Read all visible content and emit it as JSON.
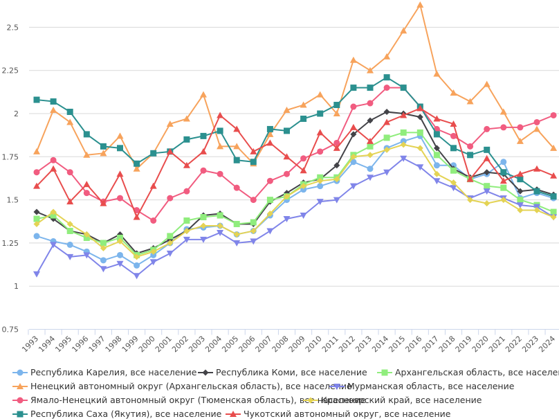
{
  "chart_data": {
    "type": "line",
    "title": "",
    "xlabel": "",
    "ylabel": "",
    "ylim": [
      0.75,
      2.6
    ],
    "yticks": [
      "0.75",
      "1",
      "1.25",
      "1.5",
      "1.75",
      "2",
      "2.25",
      "2.5"
    ],
    "ytick_values": [
      0.75,
      1.0,
      1.25,
      1.5,
      1.75,
      2.0,
      2.25,
      2.5
    ],
    "grid": true,
    "legend_position": "bottom",
    "categories": [
      "1993",
      "1994",
      "1995",
      "1996",
      "1997",
      "1998",
      "1999",
      "2000",
      "2001",
      "2002",
      "2003",
      "2004",
      "2005",
      "2006",
      "2007",
      "2008",
      "2009",
      "2010",
      "2011",
      "2012",
      "2013",
      "2014",
      "2015",
      "2016",
      "2017",
      "2018",
      "2019",
      "2020",
      "2021",
      "2022",
      "2023",
      "2024"
    ],
    "series": [
      {
        "name": "Республика Карелия, все население",
        "color": "#7cb5ec",
        "marker": "circle",
        "values": [
          1.29,
          1.26,
          1.24,
          1.2,
          1.15,
          1.18,
          1.12,
          1.18,
          1.25,
          1.33,
          1.34,
          1.35,
          1.3,
          1.32,
          1.41,
          1.5,
          1.56,
          1.58,
          1.61,
          1.72,
          1.68,
          1.8,
          1.84,
          1.87,
          1.7,
          1.7,
          1.62,
          1.65,
          1.72,
          1.51,
          1.54,
          1.51
        ]
      },
      {
        "name": "Республика Коми, все население",
        "color": "#434348",
        "marker": "diamond",
        "values": [
          1.43,
          1.39,
          1.32,
          1.3,
          1.25,
          1.3,
          1.19,
          1.22,
          1.27,
          1.32,
          1.41,
          1.42,
          1.36,
          1.36,
          1.49,
          1.54,
          1.6,
          1.62,
          1.7,
          1.88,
          1.96,
          2.01,
          2.0,
          1.98,
          1.8,
          1.68,
          1.63,
          1.66,
          1.65,
          1.55,
          1.56,
          1.53
        ]
      },
      {
        "name": "Архангельская область, все население",
        "color": "#90ed7d",
        "marker": "square",
        "values": [
          1.39,
          1.41,
          1.32,
          1.28,
          1.25,
          1.28,
          1.18,
          1.21,
          1.29,
          1.38,
          1.4,
          1.41,
          1.36,
          1.37,
          1.5,
          1.52,
          1.59,
          1.63,
          1.63,
          1.76,
          1.81,
          1.86,
          1.89,
          1.89,
          1.76,
          1.67,
          1.62,
          1.58,
          1.57,
          1.5,
          1.47,
          1.43
        ]
      },
      {
        "name": "Ненецкий автономный округ (Архангельская область), все население",
        "color": "#f7a35c",
        "marker": "triangle",
        "values": [
          1.78,
          2.02,
          1.95,
          1.76,
          1.77,
          1.87,
          1.68,
          1.77,
          1.94,
          1.97,
          2.11,
          1.81,
          1.81,
          1.71,
          1.88,
          2.02,
          2.05,
          2.11,
          2.0,
          2.31,
          2.25,
          2.33,
          2.48,
          2.63,
          2.23,
          2.12,
          2.07,
          2.17,
          2.01,
          1.84,
          1.91,
          1.8
        ]
      },
      {
        "name": "Мурманская область, все население",
        "color": "#8085e9",
        "marker": "triangle-down",
        "values": [
          1.07,
          1.24,
          1.17,
          1.18,
          1.1,
          1.13,
          1.06,
          1.14,
          1.19,
          1.27,
          1.27,
          1.31,
          1.25,
          1.26,
          1.32,
          1.39,
          1.41,
          1.49,
          1.5,
          1.58,
          1.63,
          1.66,
          1.74,
          1.69,
          1.61,
          1.57,
          1.51,
          1.55,
          1.51,
          1.47,
          1.46,
          1.4
        ]
      },
      {
        "name": "Ямало-Ненецкий автономный округ (Тюменская область), все население",
        "color": "#f15c80",
        "marker": "circle",
        "values": [
          1.66,
          1.73,
          1.66,
          1.54,
          1.49,
          1.51,
          1.44,
          1.38,
          1.51,
          1.55,
          1.67,
          1.65,
          1.57,
          1.5,
          1.61,
          1.65,
          1.74,
          1.78,
          1.83,
          2.04,
          2.06,
          2.15,
          2.15,
          2.04,
          1.91,
          1.87,
          1.81,
          1.91,
          1.92,
          1.92,
          1.95,
          1.99
        ]
      },
      {
        "name": "Красноярский край, все население",
        "color": "#e4d354",
        "marker": "diamond",
        "values": [
          1.36,
          1.43,
          1.36,
          1.3,
          1.22,
          1.26,
          1.17,
          1.2,
          1.25,
          1.32,
          1.35,
          1.35,
          1.3,
          1.32,
          1.42,
          1.52,
          1.58,
          1.61,
          1.62,
          1.75,
          1.76,
          1.79,
          1.82,
          1.8,
          1.65,
          1.6,
          1.5,
          1.48,
          1.5,
          1.44,
          1.44,
          1.4
        ]
      },
      {
        "name": "Республика Саха (Якутия), все население",
        "color": "#2b908f",
        "marker": "square",
        "values": [
          2.08,
          2.07,
          2.01,
          1.88,
          1.81,
          1.8,
          1.71,
          1.77,
          1.78,
          1.85,
          1.87,
          1.9,
          1.73,
          1.72,
          1.91,
          1.9,
          1.97,
          2.0,
          2.05,
          2.15,
          2.15,
          2.21,
          2.15,
          2.04,
          1.88,
          1.8,
          1.76,
          1.79,
          1.66,
          1.62,
          1.55,
          1.52
        ]
      },
      {
        "name": "Чукотский автономный округ, все население",
        "color": "#e84d4d",
        "marker": "triangle",
        "values": [
          1.58,
          1.68,
          1.49,
          1.59,
          1.48,
          1.65,
          1.4,
          1.58,
          1.78,
          1.7,
          1.78,
          1.99,
          1.91,
          1.78,
          1.83,
          1.75,
          1.67,
          1.89,
          1.8,
          1.92,
          1.84,
          1.95,
          1.99,
          2.03,
          1.97,
          1.94,
          1.62,
          1.74,
          1.61,
          1.65,
          1.68,
          1.64
        ]
      }
    ]
  }
}
